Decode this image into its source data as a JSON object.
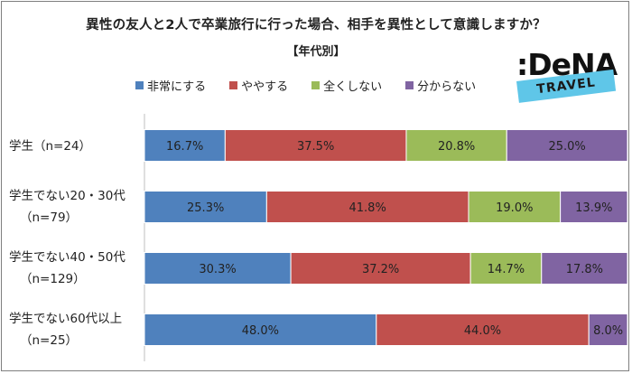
{
  "title": "異性の友人と2人で卒業旅行に行った場合、相手を異性として意識しますか？",
  "subtitle": "【年代別】",
  "logo": {
    "text": ":DeNA",
    "band": "TRAVEL"
  },
  "chart_data": {
    "type": "bar",
    "orientation": "horizontal",
    "stacked": "100%",
    "categories": [
      [
        "学生（n=24）"
      ],
      [
        "学生でない20・30代",
        "（n=79）"
      ],
      [
        "学生でない40・50代",
        "（n=129）"
      ],
      [
        "学生でない60代以上",
        "（n=25）"
      ]
    ],
    "series": [
      {
        "name": "非常にする",
        "color": "#4f81bd",
        "values": [
          16.7,
          25.3,
          30.3,
          48.0
        ],
        "labels": [
          "16.7%",
          "25.3%",
          "30.3%",
          "48.0%"
        ]
      },
      {
        "name": "ややする",
        "color": "#c0504d",
        "values": [
          37.5,
          41.8,
          37.2,
          44.0
        ],
        "labels": [
          "37.5%",
          "41.8%",
          "37.2%",
          "44.0%"
        ]
      },
      {
        "name": "全くしない",
        "color": "#9bbb59",
        "values": [
          20.8,
          19.0,
          14.7,
          0
        ],
        "labels": [
          "20.8%",
          "19.0%",
          "14.7%",
          ""
        ]
      },
      {
        "name": "分からない",
        "color": "#8064a2",
        "values": [
          25.0,
          13.9,
          17.8,
          8.0
        ],
        "labels": [
          "25.0%",
          "13.9%",
          "17.8%",
          "8.0%"
        ]
      }
    ],
    "xlim": [
      0,
      100
    ],
    "legend_position": "top",
    "grid": false
  }
}
